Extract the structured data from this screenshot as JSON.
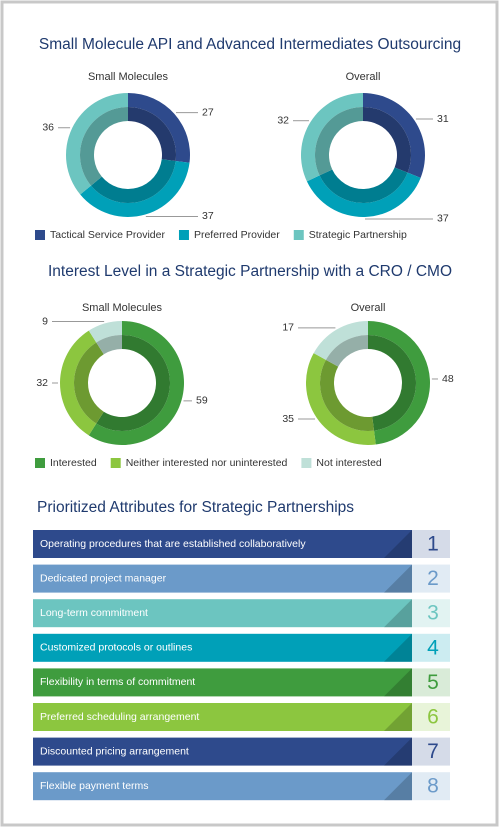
{
  "sections": [
    {
      "title": "Small Molecule API and Advanced Intermediates Outsourcing"
    },
    {
      "title": "Interest Level in a Strategic Partnership with a CRO / CMO"
    }
  ],
  "chart_data": [
    {
      "type": "donut",
      "section": 0,
      "title": "Small Molecules",
      "categories": [
        "Tactical Service Provider",
        "Preferred Provider",
        "Strategic Partnership"
      ],
      "values": [
        27,
        37,
        36
      ],
      "colors": [
        "#2e4a8c",
        "#00a0b8",
        "#6cc5c0"
      ]
    },
    {
      "type": "donut",
      "section": 0,
      "title": "Overall",
      "categories": [
        "Tactical Service Provider",
        "Preferred Provider",
        "Strategic Partnership"
      ],
      "values": [
        31,
        37,
        32
      ],
      "colors": [
        "#2e4a8c",
        "#00a0b8",
        "#6cc5c0"
      ]
    },
    {
      "type": "donut",
      "section": 1,
      "title": "Small Molecules",
      "categories": [
        "Interested",
        "Neither interested nor uninterested",
        "Not interested"
      ],
      "values": [
        59,
        32,
        9
      ],
      "colors": [
        "#3f9c3e",
        "#8cc63f",
        "#bfe0d8"
      ]
    },
    {
      "type": "donut",
      "section": 1,
      "title": "Overall",
      "categories": [
        "Interested",
        "Neither interested nor uninterested",
        "Not interested"
      ],
      "values": [
        48,
        35,
        17
      ],
      "colors": [
        "#3f9c3e",
        "#8cc63f",
        "#bfe0d8"
      ]
    }
  ],
  "attributes": {
    "title": "Prioritized Attributes for Strategic Partnerships",
    "items": [
      {
        "label": "Operating procedures that are established collaboratively",
        "rank": 1,
        "color": "#2e4a8c"
      },
      {
        "label": "Dedicated project manager",
        "rank": 2,
        "color": "#6b9ac9"
      },
      {
        "label": "Long-term commitment",
        "rank": 3,
        "color": "#6cc5c0"
      },
      {
        "label": "Customized protocols or outlines",
        "rank": 4,
        "color": "#00a0b8"
      },
      {
        "label": "Flexibility in terms of commitment",
        "rank": 5,
        "color": "#3f9c3e"
      },
      {
        "label": "Preferred scheduling arrangement",
        "rank": 6,
        "color": "#8cc63f"
      },
      {
        "label": "Discounted pricing arrangement",
        "rank": 7,
        "color": "#2e4a8c"
      },
      {
        "label": "Flexible payment terms",
        "rank": 8,
        "color": "#6b9ac9"
      }
    ]
  }
}
